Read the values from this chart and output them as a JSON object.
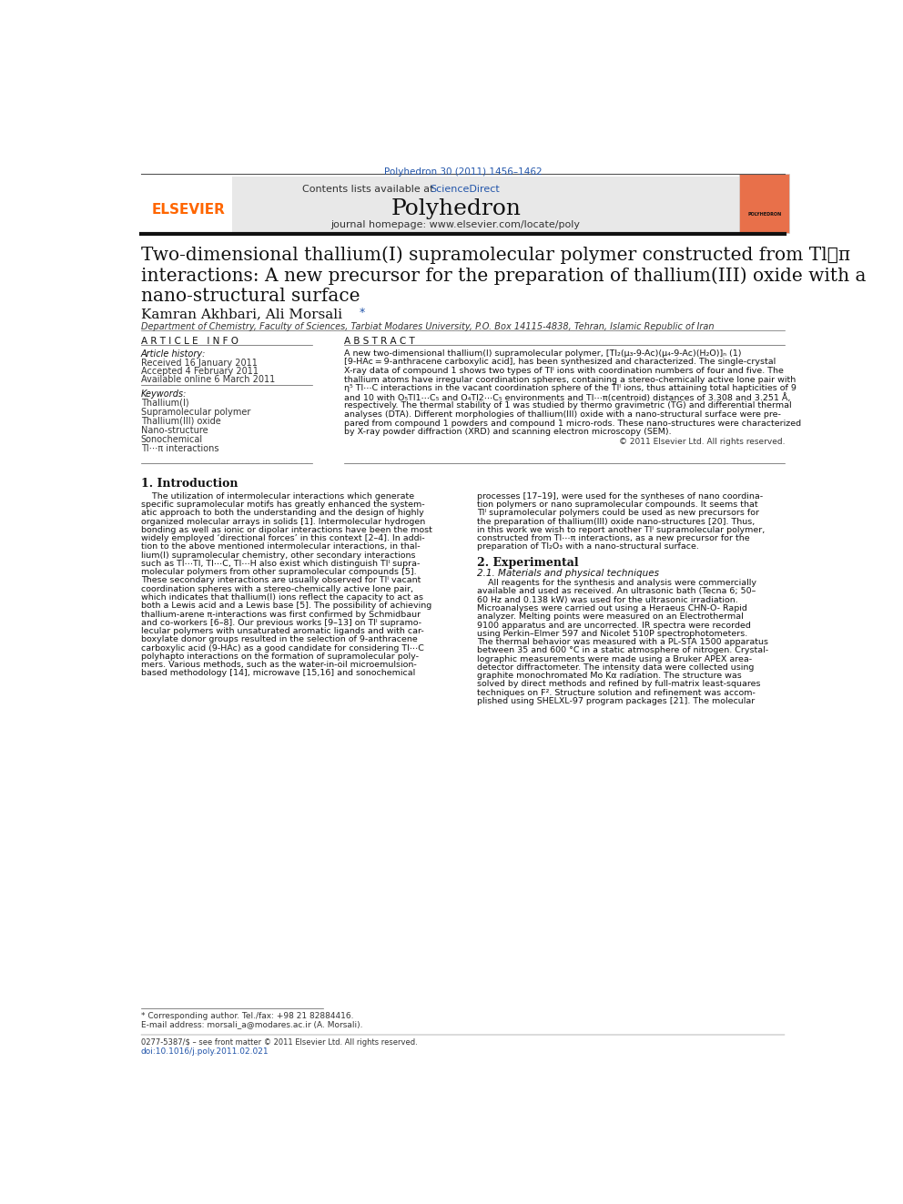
{
  "page_width": 9.92,
  "page_height": 13.23,
  "bg_color": "#ffffff",
  "journal_ref_color": "#2255aa",
  "journal_ref": "Polyhedron 30 (2011) 1456–1462",
  "header_bg": "#e8e8e8",
  "header_text1": "Contents lists available at ",
  "header_sciencedirect": "ScienceDirect",
  "header_sciencedirect_color": "#2255aa",
  "journal_name": "Polyhedron",
  "journal_homepage": "journal homepage: www.elsevier.com/locate/poly",
  "elsevier_color": "#ff6600",
  "title_line1": "Two-dimensional thallium(I) supramolecular polymer constructed from Tl⋯π",
  "title_line2": "interactions: A new precursor for the preparation of thallium(III) oxide with a",
  "title_line3": "nano-structural surface",
  "authors": "Kamran Akhbari, Ali Morsali",
  "affiliation": "Department of Chemistry, Faculty of Sciences, Tarbiat Modares University, P.O. Box 14115-4838, Tehran, Islamic Republic of Iran",
  "article_info_header": "A R T I C L E   I N F O",
  "abstract_header": "A B S T R A C T",
  "article_history_label": "Article history:",
  "received": "Received 16 January 2011",
  "accepted": "Accepted 4 February 2011",
  "available": "Available online 6 March 2011",
  "keywords_label": "Keywords:",
  "keywords": [
    "Thallium(I)",
    "Supramolecular polymer",
    "Thallium(III) oxide",
    "Nano-structure",
    "Sonochemical",
    "Tl⋯π interactions"
  ],
  "copyright": "© 2011 Elsevier Ltd. All rights reserved.",
  "section1_title": "1. Introduction",
  "section2_title": "2. Experimental",
  "section2_sub": "2.1. Materials and physical techniques",
  "footnote1": "* Corresponding author. Tel./fax: +98 21 82884416.",
  "footnote2": "E-mail address: morsali_a@modares.ac.ir (A. Morsali).",
  "footer1": "0277-5387/$ – see front matter © 2011 Elsevier Ltd. All rights reserved.",
  "footer2": "doi:10.1016/j.poly.2011.02.021"
}
